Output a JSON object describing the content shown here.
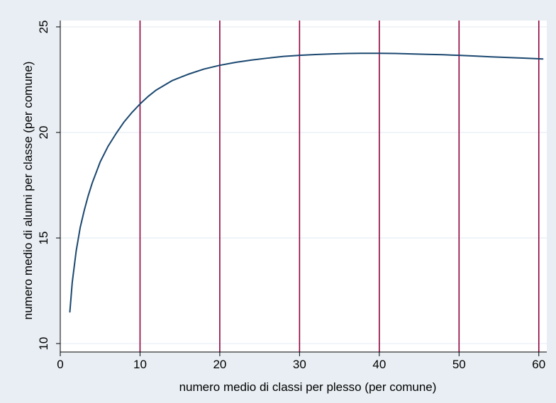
{
  "chart_data": {
    "type": "line",
    "title": "",
    "xlabel": "numero medio di classi per plesso (per comune)",
    "ylabel": "numero medio di alunni per classe (per comune)",
    "xlim": [
      0,
      61
    ],
    "ylim": [
      9.6,
      25.3
    ],
    "x_ticks": [
      0,
      10,
      20,
      30,
      40,
      50,
      60
    ],
    "y_ticks": [
      10,
      15,
      20,
      25
    ],
    "x_tick_labels": [
      "0",
      "10",
      "20",
      "30",
      "40",
      "50",
      "60"
    ],
    "y_tick_labels": [
      "10",
      "15",
      "20",
      "25"
    ],
    "grid": {
      "horizontal": true
    },
    "vertical_reference_lines": [
      10,
      20,
      30,
      40,
      50,
      60
    ],
    "series": [
      {
        "x": [
          1.2,
          1.5,
          2,
          2.5,
          3,
          3.5,
          4,
          5,
          6,
          7,
          8,
          9,
          10,
          11,
          12,
          14,
          16,
          18,
          20,
          22,
          24,
          26,
          28,
          30,
          32,
          34,
          36,
          38,
          40,
          42,
          44,
          46,
          48,
          50,
          52,
          54,
          56,
          58,
          60.5
        ],
        "y": [
          11.5,
          12.9,
          14.4,
          15.5,
          16.3,
          17.0,
          17.6,
          18.6,
          19.35,
          19.95,
          20.5,
          20.95,
          21.35,
          21.7,
          22.0,
          22.45,
          22.75,
          23.0,
          23.18,
          23.32,
          23.43,
          23.52,
          23.6,
          23.65,
          23.69,
          23.72,
          23.74,
          23.75,
          23.75,
          23.74,
          23.72,
          23.7,
          23.68,
          23.65,
          23.62,
          23.58,
          23.55,
          23.52,
          23.48
        ]
      }
    ],
    "colors": {
      "background": "#e8eef3",
      "plot_area": "#ffffff",
      "gridline": "#e8eef3",
      "line": "#1a476f",
      "reference_line": "#90003c",
      "axis": "#000000"
    }
  }
}
